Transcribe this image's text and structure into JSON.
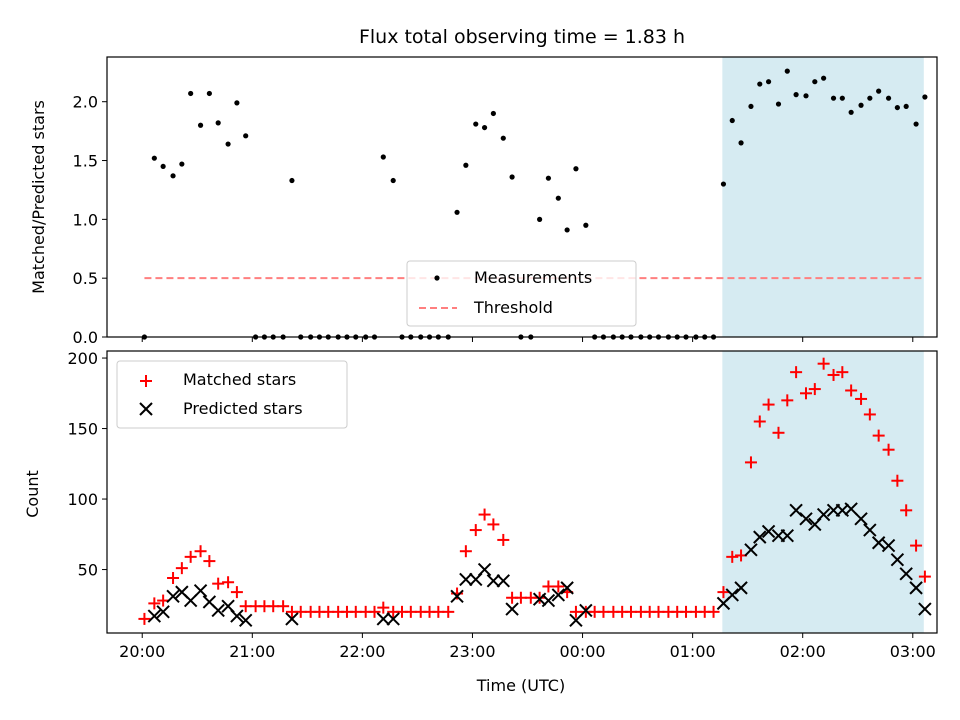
{
  "chart_data": {
    "type": "scatter",
    "title": "Flux total observing time = 1.83 h",
    "xlabel": "Time (UTC)",
    "x_unit": "hours since 20:00 UTC",
    "xlim": [
      -0.32,
      7.22
    ],
    "x_ticks": [
      {
        "value": 0,
        "label": "20:00"
      },
      {
        "value": 1,
        "label": "21:00"
      },
      {
        "value": 2,
        "label": "22:00"
      },
      {
        "value": 3,
        "label": "23:00"
      },
      {
        "value": 4,
        "label": "00:00"
      },
      {
        "value": 5,
        "label": "01:00"
      },
      {
        "value": 6,
        "label": "02:00"
      },
      {
        "value": 7,
        "label": "03:00"
      }
    ],
    "highlight_span": [
      5.27,
      7.1
    ],
    "highlight_color": "#add8e6",
    "top": {
      "ylabel": "Matched/Predicted stars",
      "ylim": [
        0,
        2.38
      ],
      "y_ticks": [
        "0.0",
        "0.5",
        "1.0",
        "1.5",
        "2.0"
      ],
      "legend_position": "lower center",
      "threshold": {
        "name": "Threshold",
        "value": 0.5,
        "x_range": [
          0.02,
          7.1
        ],
        "color": "#ff7f7f"
      },
      "series": [
        {
          "name": "Measurements",
          "color": "#000000",
          "points": [
            [
              0.02,
              0
            ],
            [
              0.11,
              1.52
            ],
            [
              0.19,
              1.45
            ],
            [
              0.28,
              1.37
            ],
            [
              0.36,
              1.47
            ],
            [
              0.44,
              2.07
            ],
            [
              0.53,
              1.8
            ],
            [
              0.61,
              2.07
            ],
            [
              0.69,
              1.82
            ],
            [
              0.78,
              1.64
            ],
            [
              0.86,
              1.99
            ],
            [
              0.94,
              1.71
            ],
            [
              1.03,
              0
            ],
            [
              1.11,
              0
            ],
            [
              1.19,
              0
            ],
            [
              1.28,
              0
            ],
            [
              1.36,
              1.33
            ],
            [
              1.44,
              0
            ],
            [
              1.53,
              0
            ],
            [
              1.61,
              0
            ],
            [
              1.69,
              0
            ],
            [
              1.78,
              0
            ],
            [
              1.86,
              0
            ],
            [
              1.94,
              0
            ],
            [
              2.03,
              0
            ],
            [
              2.11,
              0
            ],
            [
              2.19,
              1.53
            ],
            [
              2.28,
              1.33
            ],
            [
              2.36,
              0
            ],
            [
              2.44,
              0
            ],
            [
              2.53,
              0
            ],
            [
              2.61,
              0
            ],
            [
              2.69,
              0
            ],
            [
              2.78,
              0
            ],
            [
              2.86,
              1.06
            ],
            [
              2.94,
              1.46
            ],
            [
              3.03,
              1.81
            ],
            [
              3.11,
              1.78
            ],
            [
              3.19,
              1.9
            ],
            [
              3.28,
              1.69
            ],
            [
              3.36,
              1.36
            ],
            [
              3.44,
              0
            ],
            [
              3.53,
              0
            ],
            [
              3.61,
              1.0
            ],
            [
              3.69,
              1.35
            ],
            [
              3.78,
              1.18
            ],
            [
              3.86,
              0.91
            ],
            [
              3.94,
              1.43
            ],
            [
              4.03,
              0.95
            ],
            [
              4.11,
              0
            ],
            [
              4.19,
              0
            ],
            [
              4.28,
              0
            ],
            [
              4.36,
              0
            ],
            [
              4.44,
              0
            ],
            [
              4.53,
              0
            ],
            [
              4.61,
              0
            ],
            [
              4.69,
              0
            ],
            [
              4.78,
              0
            ],
            [
              4.86,
              0
            ],
            [
              4.94,
              0
            ],
            [
              5.03,
              0
            ],
            [
              5.11,
              0
            ],
            [
              5.19,
              0
            ],
            [
              5.28,
              1.3
            ],
            [
              5.36,
              1.84
            ],
            [
              5.44,
              1.65
            ],
            [
              5.53,
              1.96
            ],
            [
              5.61,
              2.15
            ],
            [
              5.69,
              2.17
            ],
            [
              5.78,
              1.98
            ],
            [
              5.86,
              2.26
            ],
            [
              5.94,
              2.06
            ],
            [
              6.03,
              2.05
            ],
            [
              6.11,
              2.17
            ],
            [
              6.19,
              2.2
            ],
            [
              6.28,
              2.03
            ],
            [
              6.36,
              2.03
            ],
            [
              6.44,
              1.91
            ],
            [
              6.53,
              1.97
            ],
            [
              6.61,
              2.03
            ],
            [
              6.69,
              2.09
            ],
            [
              6.78,
              2.03
            ],
            [
              6.86,
              1.95
            ],
            [
              6.94,
              1.96
            ],
            [
              7.03,
              1.81
            ],
            [
              7.11,
              2.04
            ]
          ]
        }
      ]
    },
    "bottom": {
      "ylabel": "Count",
      "ylim": [
        5,
        205
      ],
      "y_ticks": [
        "50",
        "100",
        "150",
        "200"
      ],
      "legend_position": "upper left",
      "series": [
        {
          "name": "Matched stars",
          "marker": "plus",
          "color": "#ff0000",
          "points": [
            [
              0.02,
              15
            ],
            [
              0.11,
              26
            ],
            [
              0.19,
              28
            ],
            [
              0.28,
              44
            ],
            [
              0.36,
              51
            ],
            [
              0.44,
              59
            ],
            [
              0.53,
              63
            ],
            [
              0.61,
              56
            ],
            [
              0.69,
              40
            ],
            [
              0.78,
              41
            ],
            [
              0.86,
              34
            ],
            [
              0.94,
              24
            ],
            [
              1.03,
              24
            ],
            [
              1.11,
              24
            ],
            [
              1.19,
              24
            ],
            [
              1.28,
              24
            ],
            [
              1.36,
              20
            ],
            [
              1.44,
              20
            ],
            [
              1.53,
              20
            ],
            [
              1.61,
              20
            ],
            [
              1.69,
              20
            ],
            [
              1.78,
              20
            ],
            [
              1.86,
              20
            ],
            [
              1.94,
              20
            ],
            [
              2.03,
              20
            ],
            [
              2.11,
              20
            ],
            [
              2.19,
              23
            ],
            [
              2.28,
              20
            ],
            [
              2.36,
              20
            ],
            [
              2.44,
              20
            ],
            [
              2.53,
              20
            ],
            [
              2.61,
              20
            ],
            [
              2.69,
              20
            ],
            [
              2.78,
              20
            ],
            [
              2.86,
              33
            ],
            [
              2.94,
              63
            ],
            [
              3.03,
              78
            ],
            [
              3.11,
              89
            ],
            [
              3.19,
              82
            ],
            [
              3.28,
              71
            ],
            [
              3.36,
              30
            ],
            [
              3.44,
              30
            ],
            [
              3.53,
              30
            ],
            [
              3.61,
              30
            ],
            [
              3.69,
              38
            ],
            [
              3.78,
              38
            ],
            [
              3.86,
              34
            ],
            [
              3.94,
              20
            ],
            [
              4.03,
              20
            ],
            [
              4.11,
              20
            ],
            [
              4.19,
              20
            ],
            [
              4.28,
              20
            ],
            [
              4.36,
              20
            ],
            [
              4.44,
              20
            ],
            [
              4.53,
              20
            ],
            [
              4.61,
              20
            ],
            [
              4.69,
              20
            ],
            [
              4.78,
              20
            ],
            [
              4.86,
              20
            ],
            [
              4.94,
              20
            ],
            [
              5.03,
              20
            ],
            [
              5.11,
              20
            ],
            [
              5.19,
              20
            ],
            [
              5.28,
              34
            ],
            [
              5.36,
              59
            ],
            [
              5.44,
              60
            ],
            [
              5.53,
              126
            ],
            [
              5.61,
              155
            ],
            [
              5.69,
              167
            ],
            [
              5.78,
              147
            ],
            [
              5.86,
              170
            ],
            [
              5.94,
              190
            ],
            [
              6.03,
              175
            ],
            [
              6.11,
              178
            ],
            [
              6.19,
              196
            ],
            [
              6.28,
              188
            ],
            [
              6.36,
              190
            ],
            [
              6.44,
              177
            ],
            [
              6.53,
              171
            ],
            [
              6.61,
              160
            ],
            [
              6.69,
              145
            ],
            [
              6.78,
              135
            ],
            [
              6.86,
              113
            ],
            [
              6.94,
              92
            ],
            [
              7.03,
              67
            ],
            [
              7.11,
              45
            ]
          ]
        },
        {
          "name": "Predicted stars",
          "marker": "x",
          "color": "#000000",
          "points": [
            [
              0.11,
              17
            ],
            [
              0.19,
              20
            ],
            [
              0.28,
              31
            ],
            [
              0.36,
              34
            ],
            [
              0.44,
              28
            ],
            [
              0.53,
              35
            ],
            [
              0.61,
              27
            ],
            [
              0.69,
              21
            ],
            [
              0.78,
              24
            ],
            [
              0.86,
              17
            ],
            [
              0.94,
              14
            ],
            [
              1.36,
              15
            ],
            [
              2.19,
              15
            ],
            [
              2.28,
              15
            ],
            [
              2.86,
              31
            ],
            [
              2.94,
              43
            ],
            [
              3.03,
              43
            ],
            [
              3.11,
              50
            ],
            [
              3.19,
              42
            ],
            [
              3.28,
              42
            ],
            [
              3.36,
              22
            ],
            [
              3.61,
              29
            ],
            [
              3.69,
              28
            ],
            [
              3.78,
              32
            ],
            [
              3.86,
              37
            ],
            [
              3.94,
              14
            ],
            [
              4.03,
              21
            ],
            [
              5.28,
              26
            ],
            [
              5.36,
              32
            ],
            [
              5.44,
              37
            ],
            [
              5.53,
              64
            ],
            [
              5.61,
              73
            ],
            [
              5.69,
              77
            ],
            [
              5.78,
              74
            ],
            [
              5.86,
              74
            ],
            [
              5.94,
              92
            ],
            [
              6.03,
              86
            ],
            [
              6.11,
              82
            ],
            [
              6.19,
              89
            ],
            [
              6.28,
              92
            ],
            [
              6.36,
              92
            ],
            [
              6.44,
              93
            ],
            [
              6.53,
              86
            ],
            [
              6.61,
              78
            ],
            [
              6.69,
              69
            ],
            [
              6.78,
              67
            ],
            [
              6.86,
              57
            ],
            [
              6.94,
              47
            ],
            [
              7.03,
              37
            ],
            [
              7.11,
              22
            ]
          ]
        }
      ]
    }
  }
}
